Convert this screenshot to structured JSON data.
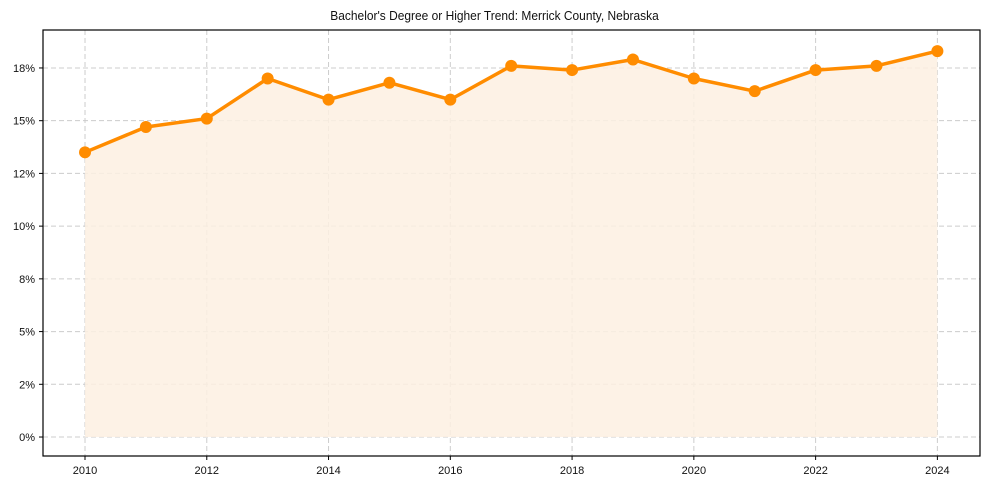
{
  "chart_data": {
    "type": "line",
    "title": "Bachelor's Degree or Higher Trend: Merrick County, Nebraska",
    "xlabel": "",
    "ylabel": "",
    "x": [
      2010,
      2011,
      2012,
      2013,
      2014,
      2015,
      2016,
      2017,
      2018,
      2019,
      2020,
      2021,
      2022,
      2023,
      2024
    ],
    "series": [
      {
        "name": "Bachelor's Degree or Higher",
        "values": [
          13.5,
          14.7,
          15.1,
          17.0,
          16.0,
          16.8,
          16.0,
          17.6,
          17.4,
          17.9,
          17.0,
          16.4,
          17.4,
          17.6,
          18.3
        ],
        "color": "#FF8C00",
        "fill_color": "#FDF0E2",
        "marker": "circle"
      }
    ],
    "xticks": [
      2010,
      2012,
      2014,
      2016,
      2018,
      2020,
      2022,
      2024
    ],
    "xtick_labels": [
      "2010",
      "2012",
      "2014",
      "2016",
      "2018",
      "2020",
      "2022",
      "2024"
    ],
    "yticks": [
      0,
      2.5,
      5,
      7.5,
      10,
      12.5,
      15,
      17.5
    ],
    "ytick_labels": [
      "0%",
      "2%",
      "5%",
      "8%",
      "10%",
      "12%",
      "15%",
      "18%"
    ],
    "ylim": [
      -0.9,
      19.3
    ],
    "xlim": [
      2009.31,
      2024.7
    ],
    "grid": true,
    "grid_style": "dashed",
    "legend": null
  }
}
